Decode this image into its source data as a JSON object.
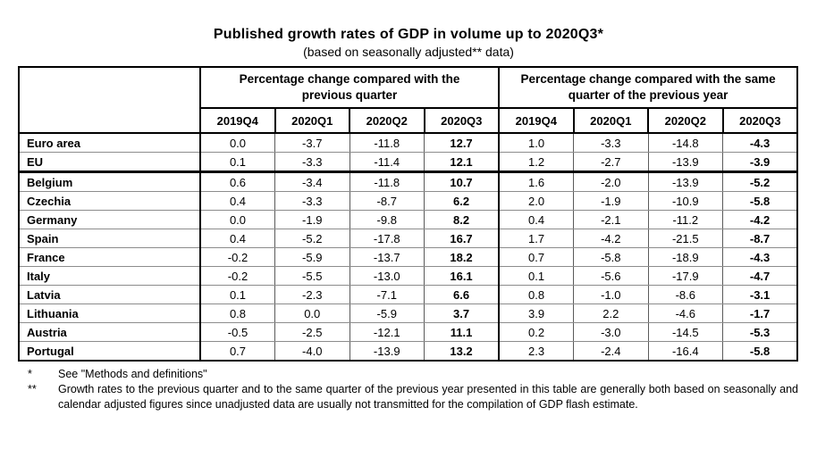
{
  "title": "Published growth rates of GDP in volume up to 2020Q3*",
  "subtitle": "(based on seasonally adjusted** data)",
  "table": {
    "group_headers": [
      "Percentage change compared with the previous quarter",
      "Percentage change compared with the same quarter of the previous year"
    ],
    "quarters": [
      "2019Q4",
      "2020Q1",
      "2020Q2",
      "2020Q3"
    ],
    "rows": [
      {
        "name": "Euro area",
        "prev_quarter": [
          "0.0",
          "-3.7",
          "-11.8",
          "12.7"
        ],
        "prev_year": [
          "1.0",
          "-3.3",
          "-14.8",
          "-4.3"
        ],
        "section_end": false
      },
      {
        "name": "EU",
        "prev_quarter": [
          "0.1",
          "-3.3",
          "-11.4",
          "12.1"
        ],
        "prev_year": [
          "1.2",
          "-2.7",
          "-13.9",
          "-3.9"
        ],
        "section_end": true
      },
      {
        "name": "Belgium",
        "prev_quarter": [
          "0.6",
          "-3.4",
          "-11.8",
          "10.7"
        ],
        "prev_year": [
          "1.6",
          "-2.0",
          "-13.9",
          "-5.2"
        ],
        "section_end": false
      },
      {
        "name": "Czechia",
        "prev_quarter": [
          "0.4",
          "-3.3",
          "-8.7",
          "6.2"
        ],
        "prev_year": [
          "2.0",
          "-1.9",
          "-10.9",
          "-5.8"
        ],
        "section_end": false
      },
      {
        "name": "Germany",
        "prev_quarter": [
          "0.0",
          "-1.9",
          "-9.8",
          "8.2"
        ],
        "prev_year": [
          "0.4",
          "-2.1",
          "-11.2",
          "-4.2"
        ],
        "section_end": false
      },
      {
        "name": "Spain",
        "prev_quarter": [
          "0.4",
          "-5.2",
          "-17.8",
          "16.7"
        ],
        "prev_year": [
          "1.7",
          "-4.2",
          "-21.5",
          "-8.7"
        ],
        "section_end": false
      },
      {
        "name": "France",
        "prev_quarter": [
          "-0.2",
          "-5.9",
          "-13.7",
          "18.2"
        ],
        "prev_year": [
          "0.7",
          "-5.8",
          "-18.9",
          "-4.3"
        ],
        "section_end": false
      },
      {
        "name": "Italy",
        "prev_quarter": [
          "-0.2",
          "-5.5",
          "-13.0",
          "16.1"
        ],
        "prev_year": [
          "0.1",
          "-5.6",
          "-17.9",
          "-4.7"
        ],
        "section_end": false
      },
      {
        "name": "Latvia",
        "prev_quarter": [
          "0.1",
          "-2.3",
          "-7.1",
          "6.6"
        ],
        "prev_year": [
          "0.8",
          "-1.0",
          "-8.6",
          "-3.1"
        ],
        "section_end": false
      },
      {
        "name": "Lithuania",
        "prev_quarter": [
          "0.8",
          "0.0",
          "-5.9",
          "3.7"
        ],
        "prev_year": [
          "3.9",
          "2.2",
          "-4.6",
          "-1.7"
        ],
        "section_end": false
      },
      {
        "name": "Austria",
        "prev_quarter": [
          "-0.5",
          "-2.5",
          "-12.1",
          "11.1"
        ],
        "prev_year": [
          "0.2",
          "-3.0",
          "-14.5",
          "-5.3"
        ],
        "section_end": false
      },
      {
        "name": "Portugal",
        "prev_quarter": [
          "0.7",
          "-4.0",
          "-13.9",
          "13.2"
        ],
        "prev_year": [
          "2.3",
          "-2.4",
          "-16.4",
          "-5.8"
        ],
        "section_end": false
      }
    ]
  },
  "footnotes": [
    {
      "marker": "*",
      "text": "See \"Methods and definitions\""
    },
    {
      "marker": "**",
      "text": "Growth rates to the previous quarter and to the same quarter of the previous year presented in this table are generally both based on seasonally and calendar adjusted figures since unadjusted data are usually not transmitted for the compilation of GDP flash estimate."
    }
  ],
  "colors": {
    "background": "#ffffff",
    "text": "#000000",
    "grid_major": "#000000",
    "grid_minor": "#8c8c8c"
  }
}
